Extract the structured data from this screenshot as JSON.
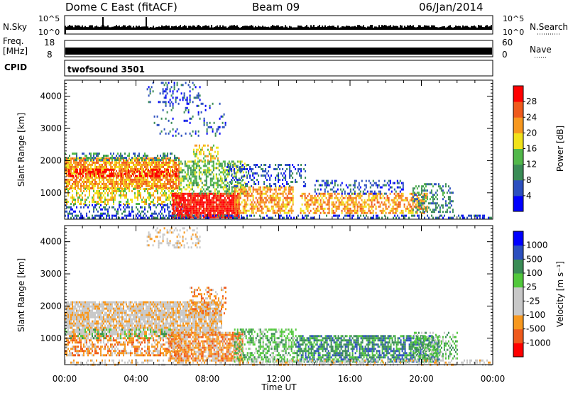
{
  "header": {
    "site": "Dome C East (fitACF)",
    "beam": "Beam 09",
    "date": "06/Jan/2014"
  },
  "strips": {
    "nsky_label": "N.Sky",
    "nsearch_label": "N.Search",
    "nsky_ticks": [
      "10^5",
      "10^0"
    ],
    "nsearch_ticks": [
      "10^5",
      "10^0"
    ],
    "freq_label_1": "Freq.",
    "freq_label_2": "[MHz]",
    "freq_ticks": [
      "18",
      "8"
    ],
    "nave_label": "Nave",
    "nave_ticks": [
      "60",
      "0"
    ],
    "cpid_label": "CPID",
    "cpid_value": "twofsound 3501"
  },
  "chart_data": [
    {
      "type": "heatmap",
      "panel": "power",
      "ylabel": "Slant Range [km]",
      "xlabel": "Time UT",
      "x_ticks": [
        "00:00",
        "04:00",
        "08:00",
        "12:00",
        "16:00",
        "20:00",
        "00:00"
      ],
      "xlim_hours": [
        0,
        24
      ],
      "y_ticks": [
        1000,
        2000,
        3000,
        4000
      ],
      "ylim": [
        180,
        4500
      ],
      "colorbar_label": "Power [dB]",
      "colorbar_ticks": [
        "28",
        "24",
        "20",
        "16",
        "12",
        "8",
        "4"
      ],
      "colorbar_colors": [
        "#0000ff",
        "#2c4fbf",
        "#3a8c56",
        "#52b84a",
        "#f1e21a",
        "#f7981f",
        "#ef5a1c",
        "#ff0000"
      ],
      "regions": [
        {
          "t0": 0.0,
          "t1": 6.4,
          "r0": 1150,
          "r1": 2100,
          "c": 5,
          "d": 0.8
        },
        {
          "t0": 0.2,
          "t1": 6.4,
          "r0": 1500,
          "r1": 1750,
          "c": 7,
          "d": 0.5
        },
        {
          "t0": 0.0,
          "t1": 6.4,
          "r0": 2000,
          "r1": 2250,
          "c": 2,
          "d": 0.4
        },
        {
          "t0": 0.0,
          "t1": 6.6,
          "r0": 650,
          "r1": 1150,
          "c": 4,
          "d": 0.45
        },
        {
          "t0": 0.0,
          "t1": 7.0,
          "r0": 250,
          "r1": 650,
          "c": 1,
          "d": 0.35
        },
        {
          "t0": 6.0,
          "t1": 9.8,
          "r0": 250,
          "r1": 1000,
          "c": 7,
          "d": 0.9
        },
        {
          "t0": 6.4,
          "t1": 10.2,
          "r0": 1000,
          "r1": 2000,
          "c": 3,
          "d": 0.5
        },
        {
          "t0": 7.2,
          "t1": 8.6,
          "r0": 2000,
          "r1": 2500,
          "c": 4,
          "d": 0.45
        },
        {
          "t0": 9.5,
          "t1": 12.8,
          "r0": 350,
          "r1": 1200,
          "c": 5,
          "d": 0.6
        },
        {
          "t0": 9.0,
          "t1": 13.5,
          "r0": 1200,
          "r1": 1900,
          "c": 1,
          "d": 0.3
        },
        {
          "t0": 13.2,
          "t1": 20.3,
          "r0": 350,
          "r1": 1000,
          "c": 5,
          "d": 0.55
        },
        {
          "t0": 14.0,
          "t1": 19.0,
          "r0": 1000,
          "r1": 1400,
          "c": 1,
          "d": 0.3
        },
        {
          "t0": 19.5,
          "t1": 21.8,
          "r0": 400,
          "r1": 1300,
          "c": 2,
          "d": 0.4
        },
        {
          "t0": 4.6,
          "t1": 7.6,
          "r0": 3800,
          "r1": 4450,
          "c": 1,
          "d": 0.25
        },
        {
          "t0": 5.0,
          "t1": 9.0,
          "r0": 2800,
          "r1": 3800,
          "c": 1,
          "d": 0.12
        },
        {
          "t0": 0.0,
          "t1": 24.0,
          "r0": 200,
          "r1": 320,
          "c": 1,
          "d": 0.35
        }
      ]
    },
    {
      "type": "heatmap",
      "panel": "velocity",
      "ylabel": "Slant Range [km]",
      "xlabel": "Time UT",
      "x_ticks": [
        "00:00",
        "04:00",
        "08:00",
        "12:00",
        "16:00",
        "20:00",
        "00:00"
      ],
      "xlim_hours": [
        0,
        24
      ],
      "y_ticks": [
        1000,
        2000,
        3000,
        4000
      ],
      "ylim": [
        180,
        4500
      ],
      "colorbar_label": "Velocity [m s⁻¹]",
      "colorbar_ticks": [
        "1000",
        "500",
        "100",
        "25",
        "-25",
        "-100",
        "-500",
        "-1000"
      ],
      "colorbar_colors": [
        "#ff0000",
        "#ef5a1c",
        "#f7981f",
        "#c8c8c8",
        "#c8c8c8",
        "#52c83c",
        "#3a8c56",
        "#2c4fbf",
        "#0000ff"
      ],
      "regions": [
        {
          "t0": 0.0,
          "t1": 8.8,
          "r0": 1150,
          "r1": 2150,
          "c": 3,
          "d": 0.85
        },
        {
          "t0": 0.0,
          "t1": 6.5,
          "r0": 500,
          "r1": 1100,
          "c": 2,
          "d": 0.6
        },
        {
          "t0": 0.0,
          "t1": 6.0,
          "r0": 1000,
          "r1": 1300,
          "c": 5,
          "d": 0.3
        },
        {
          "t0": 5.8,
          "t1": 10.0,
          "r0": 300,
          "r1": 1200,
          "c": 2,
          "d": 0.8
        },
        {
          "t0": 9.5,
          "t1": 13.0,
          "r0": 300,
          "r1": 1300,
          "c": 5,
          "d": 0.55
        },
        {
          "t0": 13.0,
          "t1": 21.0,
          "r0": 300,
          "r1": 1100,
          "c": 6,
          "d": 0.7
        },
        {
          "t0": 19.5,
          "t1": 22.0,
          "r0": 400,
          "r1": 1200,
          "c": 5,
          "d": 0.4
        },
        {
          "t0": 7.0,
          "t1": 9.0,
          "r0": 1800,
          "r1": 2600,
          "c": 2,
          "d": 0.4
        },
        {
          "t0": 4.6,
          "t1": 7.6,
          "r0": 3800,
          "r1": 4450,
          "c": 3,
          "d": 0.3
        },
        {
          "t0": 0.0,
          "t1": 24.0,
          "r0": 200,
          "r1": 340,
          "c": 3,
          "d": 0.35
        }
      ]
    }
  ],
  "xaxis_title": "Time UT"
}
